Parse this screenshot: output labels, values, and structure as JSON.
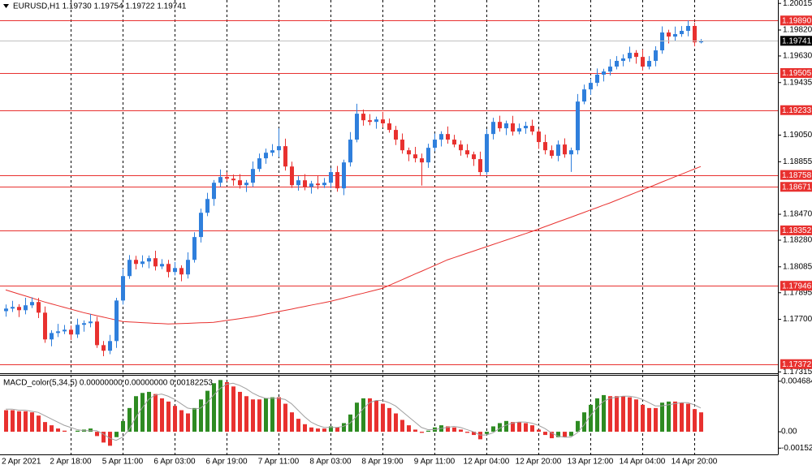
{
  "chart_data": [
    {
      "type": "candlestick",
      "title": "EURUSD,H1  1.19730 1.19754 1.19722 1.19741",
      "categories": [
        "2 Apr 2021",
        null,
        null,
        null,
        null,
        null,
        null,
        null,
        null,
        null,
        "2 Apr 18:00",
        null,
        null,
        null,
        null,
        null,
        null,
        null,
        "5 Apr 11:00",
        null,
        null,
        null,
        null,
        null,
        null,
        null,
        "6 Apr 03:00",
        null,
        null,
        null,
        null,
        null,
        null,
        null,
        "6 Apr 19:00",
        null,
        null,
        null,
        null,
        null,
        null,
        null,
        "7 Apr 11:00",
        null,
        null,
        null,
        null,
        null,
        null,
        null,
        "8 Apr 03:00",
        null,
        null,
        null,
        null,
        null,
        null,
        null,
        "8 Apr 19:00",
        null,
        null,
        null,
        null,
        null,
        null,
        null,
        "9 Apr 11:00",
        null,
        null,
        null,
        null,
        null,
        null,
        null,
        "12 Apr 04:00",
        null,
        null,
        null,
        null,
        null,
        null,
        null,
        "12 Apr 20:00",
        null,
        null,
        null,
        null,
        null,
        null,
        null,
        "13 Apr 12:00",
        null,
        null,
        null,
        null,
        null,
        null,
        null,
        "14 Apr 04:00",
        null,
        null,
        null,
        null,
        null,
        null,
        null,
        "14 Apr 20:00",
        null
      ],
      "open": [
        1.1776,
        1.17779,
        1.17791,
        1.17767,
        1.17803,
        1.17827,
        1.17749,
        1.17553,
        1.176,
        1.17612,
        1.17624,
        1.17589,
        1.1766,
        1.17672,
        1.17684,
        1.17511,
        1.1747,
        1.17541,
        1.17838,
        1.18017,
        1.18136,
        1.18106,
        1.18124,
        1.18148,
        1.18088,
        1.18106,
        1.18047,
        1.18076,
        1.18029,
        1.18136,
        1.18303,
        1.18481,
        1.18582,
        1.18701,
        1.18743,
        1.18731,
        1.18719,
        1.18683,
        1.18701,
        1.18802,
        1.1888,
        1.18921,
        1.18939,
        1.18969,
        1.1882,
        1.18683,
        1.18719,
        1.18671,
        1.18695,
        1.18683,
        1.18701,
        1.18779,
        1.1866,
        1.1885,
        1.19017,
        1.19207,
        1.19159,
        1.19147,
        1.19165,
        1.19136,
        1.19088,
        1.19017,
        1.18939,
        1.18909,
        1.1888,
        1.1885,
        1.18957,
        1.19017,
        1.19058,
        1.19017,
        1.18981,
        1.18939,
        1.18909,
        1.18874,
        1.18779,
        1.19058,
        1.19147,
        1.191,
        1.19136,
        1.19076,
        1.191,
        1.19118,
        1.19076,
        1.18999,
        1.18939,
        1.18898,
        1.18981,
        1.18909,
        1.18939,
        1.19296,
        1.19385,
        1.19433,
        1.19493,
        1.19516,
        1.19552,
        1.19594,
        1.19612,
        1.19653,
        1.19623,
        1.19552,
        1.19594,
        1.19671,
        1.19802,
        1.19772,
        1.1979,
        1.19814,
        1.1985,
        1.1973
      ],
      "high": [
        1.17809,
        1.17836,
        1.17811,
        1.17858,
        1.17862,
        1.17857,
        1.17794,
        1.1762,
        1.17667,
        1.17659,
        1.17654,
        1.17705,
        1.17692,
        1.17739,
        1.17719,
        1.17541,
        1.17586,
        1.17858,
        1.18072,
        1.18171,
        1.18166,
        1.18169,
        1.18168,
        1.18203,
        1.18141,
        1.18136,
        1.18121,
        1.18096,
        1.18191,
        1.18338,
        1.18511,
        1.18627,
        1.18721,
        1.18798,
        1.18778,
        1.18761,
        1.18764,
        1.18721,
        1.18857,
        1.18915,
        1.18951,
        1.18984,
        1.191,
        1.19024,
        1.18855,
        1.18749,
        1.18764,
        1.18715,
        1.1875,
        1.18736,
        1.18809,
        1.18824,
        1.1887,
        1.19072,
        1.1928,
        1.19237,
        1.19204,
        1.19185,
        1.1922,
        1.19171,
        1.19118,
        1.19062,
        1.18959,
        1.18964,
        1.18915,
        1.18987,
        1.19062,
        1.19078,
        1.19113,
        1.19052,
        1.19011,
        1.18984,
        1.18929,
        1.18929,
        1.19093,
        1.19177,
        1.19192,
        1.19156,
        1.19191,
        1.19135,
        1.19148,
        1.19163,
        1.19096,
        1.19054,
        1.18974,
        1.19011,
        1.19026,
        1.18959,
        1.19351,
        1.1942,
        1.19463,
        1.19538,
        1.19536,
        1.19607,
        1.19629,
        1.19642,
        1.19698,
        1.19673,
        1.19678,
        1.19629,
        1.19701,
        1.19847,
        1.19822,
        1.19845,
        1.19849,
        1.1989,
        1.19875,
        1.19754
      ],
      "low": [
        1.1772,
        1.17754,
        1.17717,
        1.17737,
        1.17783,
        1.17709,
        1.17528,
        1.17503,
        1.1757,
        1.17592,
        1.17549,
        1.17564,
        1.1761,
        1.17642,
        1.17491,
        1.1743,
        1.17445,
        1.17491,
        1.17808,
        1.17997,
        1.18066,
        1.18081,
        1.18074,
        1.18058,
        1.18068,
        1.18007,
        1.18022,
        1.17979,
        1.17999,
        1.18116,
        1.18263,
        1.18456,
        1.18532,
        1.18671,
        1.18711,
        1.18679,
        1.18658,
        1.18633,
        1.18671,
        1.18782,
        1.1884,
        1.18896,
        1.18889,
        1.1879,
        1.18663,
        1.18643,
        1.18646,
        1.18621,
        1.18653,
        1.18663,
        1.18661,
        1.18635,
        1.1861,
        1.1882,
        1.18997,
        1.19119,
        1.19122,
        1.19097,
        1.19106,
        1.19068,
        1.18977,
        1.18914,
        1.18859,
        1.1885,
        1.1868,
        1.1881,
        1.18932,
        1.18967,
        1.18987,
        1.18961,
        1.18899,
        1.18884,
        1.18824,
        1.18749,
        1.18759,
        1.19018,
        1.19075,
        1.1905,
        1.19046,
        1.19056,
        1.1906,
        1.19051,
        1.18949,
        1.18909,
        1.18878,
        1.18858,
        1.18884,
        1.1878,
        1.18909,
        1.19276,
        1.19345,
        1.19408,
        1.19443,
        1.19486,
        1.19532,
        1.19554,
        1.19587,
        1.19573,
        1.19522,
        1.19532,
        1.19554,
        1.19646,
        1.19722,
        1.19742,
        1.1977,
        1.19774,
        1.197,
        1.19722
      ],
      "close": [
        1.17779,
        1.17791,
        1.17767,
        1.17803,
        1.17827,
        1.17749,
        1.17553,
        1.176,
        1.17612,
        1.17624,
        1.17589,
        1.1766,
        1.17672,
        1.17684,
        1.17511,
        1.1747,
        1.17541,
        1.17838,
        1.18017,
        1.18136,
        1.18106,
        1.18124,
        1.18148,
        1.18088,
        1.18106,
        1.18047,
        1.18076,
        1.18029,
        1.18136,
        1.18303,
        1.18481,
        1.18582,
        1.18701,
        1.18743,
        1.18731,
        1.18719,
        1.18683,
        1.18701,
        1.18802,
        1.1888,
        1.18921,
        1.18939,
        1.18969,
        1.1882,
        1.18683,
        1.18719,
        1.18671,
        1.18695,
        1.18683,
        1.18701,
        1.18779,
        1.1866,
        1.1885,
        1.19017,
        1.19207,
        1.19159,
        1.19147,
        1.19165,
        1.19136,
        1.19088,
        1.19017,
        1.18939,
        1.18909,
        1.1888,
        1.1885,
        1.18957,
        1.19017,
        1.19058,
        1.19017,
        1.18981,
        1.18939,
        1.18909,
        1.18874,
        1.18779,
        1.19058,
        1.19147,
        1.191,
        1.19136,
        1.19076,
        1.191,
        1.19118,
        1.19076,
        1.18999,
        1.18939,
        1.18898,
        1.18981,
        1.18909,
        1.18939,
        1.19296,
        1.19385,
        1.19433,
        1.19493,
        1.19516,
        1.19552,
        1.19594,
        1.19612,
        1.19653,
        1.19623,
        1.19552,
        1.19594,
        1.19671,
        1.19802,
        1.19772,
        1.1979,
        1.19814,
        1.1985,
        1.1973,
        1.19741
      ],
      "up_color": "#2f7fdc",
      "down_color": "#e8312f",
      "ma": {
        "color": "#e8312f",
        "values": [
          1.17916,
          1.17901,
          1.17886,
          1.17872,
          1.17857,
          1.17842,
          1.17827,
          1.17814,
          1.17801,
          1.17788,
          1.17775,
          1.17762,
          1.17749,
          1.17738,
          1.17727,
          1.17717,
          1.17706,
          1.17695,
          1.17684,
          1.17681,
          1.17679,
          1.17676,
          1.17674,
          1.17671,
          1.17669,
          1.17666,
          1.17668,
          1.17669,
          1.17671,
          1.17673,
          1.17675,
          1.17676,
          1.17678,
          1.17685,
          1.17692,
          1.17698,
          1.17705,
          1.17712,
          1.17719,
          1.17728,
          1.17738,
          1.17747,
          1.17757,
          1.17766,
          1.17775,
          1.17785,
          1.17794,
          1.17804,
          1.17813,
          1.17822,
          1.17832,
          1.17844,
          1.17856,
          1.17868,
          1.1788,
          1.17891,
          1.17903,
          1.17915,
          1.17927,
          1.17948,
          1.17969,
          1.1799,
          1.18011,
          1.18032,
          1.18052,
          1.18073,
          1.18094,
          1.18115,
          1.18136,
          1.18152,
          1.18168,
          1.18184,
          1.182,
          1.18216,
          1.18232,
          1.18248,
          1.18264,
          1.1828,
          1.18296,
          1.18312,
          1.18328,
          1.18344,
          1.18361,
          1.18379,
          1.18396,
          1.18414,
          1.18431,
          1.18448,
          1.18466,
          1.18483,
          1.18501,
          1.18518,
          1.18536,
          1.18553,
          1.18572,
          1.18591,
          1.1861,
          1.18629,
          1.18648,
          1.18667,
          1.18686,
          1.18706,
          1.18725,
          1.18744,
          1.18763,
          1.18782,
          1.18801,
          1.1882
        ]
      },
      "levels": [
        {
          "value": 1.1989,
          "label": "1.19890"
        },
        1.19505,
        1.19233,
        1.18758,
        1.18671,
        1.18352,
        1.17946,
        1.17372
      ],
      "level_color": "#e8312f",
      "last_price": 1.19741,
      "last_price_color": "#c0c0c0",
      "ylim": [
        1.17305,
        1.2004
      ],
      "yticks": [
        1.20015,
        {
          "value": 1.1982,
          "label": "1.19820"
        },
        {
          "value": 1.1963,
          "label": "1.19630"
        },
        1.19435,
        {
          "value": 1.1905,
          "label": "1.19050"
        },
        1.18855,
        {
          "value": 1.1847,
          "label": "1.18470"
        },
        {
          "value": 1.1828,
          "label": "1.18280"
        },
        1.18085,
        1.17895,
        {
          "value": 1.177,
          "label": "1.17700"
        },
        1.17315
      ],
      "grid": true
    },
    {
      "type": "macd",
      "title": "MACD_color(5,34,5) 0.00000000 0.00000000 0.00182253",
      "values": [
        0.002,
        0.002,
        0.0019,
        0.0019,
        0.0018,
        0.0015,
        0.0009,
        0.0006,
        0.0003,
        0.0001,
        0,
        0.0001,
        0.0002,
        0.0003,
        -0.0004,
        -0.001,
        -0.0013,
        -0.0005,
        0.001,
        0.0022,
        0.0033,
        0.0036,
        0.0037,
        0.0035,
        0.0031,
        0.0028,
        0.0024,
        0.002,
        0.0017,
        0.0022,
        0.003,
        0.0038,
        0.0045,
        0.0048,
        0.0046,
        0.0042,
        0.0037,
        0.0033,
        0.003,
        0.003,
        0.0031,
        0.0032,
        0.0032,
        0.0026,
        0.0018,
        0.0012,
        0.0007,
        0.0004,
        0.0003,
        0.0003,
        0.0005,
        0.0004,
        0.0008,
        0.0016,
        0.0027,
        0.0031,
        0.0031,
        0.0029,
        0.0026,
        0.0022,
        0.0017,
        0.0011,
        0.0006,
        0.0002,
        -0.0001,
        0.0001,
        0.0004,
        0.0006,
        0.0005,
        0.0004,
        0.0002,
        -0.0001,
        -0.0003,
        -0.0007,
        -0.0002,
        0.0005,
        0.0008,
        0.001,
        0.0009,
        0.0009,
        0.0008,
        0.0006,
        0.0002,
        -0.0003,
        -0.0006,
        -0.0005,
        -0.0005,
        -0.0004,
        0.001,
        0.0018,
        0.0025,
        0.0031,
        0.0034,
        0.0033,
        0.0033,
        0.0033,
        0.0032,
        0.003,
        0.0025,
        0.0022,
        0.0022,
        0.0027,
        0.0028,
        0.0028,
        0.0027,
        0.0026,
        0.0021,
        0.0018
      ],
      "signal": [
        0.0021,
        0.0021,
        0.002,
        0.002,
        0.0019,
        0.0018,
        0.0015,
        0.0012,
        0.0009,
        0.0006,
        0.0004,
        0.0002,
        0.0001,
        0.0001,
        0.0001,
        -0.0002,
        -0.0006,
        -0.0008,
        -0.0005,
        0.0002,
        0.0013,
        0.0022,
        0.003,
        0.0034,
        0.0035,
        0.0033,
        0.003,
        0.0026,
        0.0022,
        0.0021,
        0.0022,
        0.0027,
        0.0034,
        0.004,
        0.0044,
        0.0045,
        0.0043,
        0.004,
        0.0036,
        0.0033,
        0.0031,
        0.0031,
        0.0031,
        0.003,
        0.0026,
        0.002,
        0.0014,
        0.0009,
        0.0006,
        0.0004,
        0.0004,
        0.0004,
        0.0005,
        0.0008,
        0.0014,
        0.0021,
        0.0027,
        0.0029,
        0.0029,
        0.0027,
        0.0024,
        0.0019,
        0.0014,
        0.0009,
        0.0004,
        0.0002,
        0.0002,
        0.0003,
        0.0004,
        0.0005,
        0.0004,
        0.0002,
        0,
        -0.0003,
        -0.0003,
        -0.0001,
        0.0003,
        0.0006,
        0.0008,
        0.0009,
        0.0009,
        0.0008,
        0.0006,
        0.0003,
        -0.0001,
        -0.0004,
        -0.0005,
        -0.0005,
        -0.0001,
        0.0006,
        0.0015,
        0.0022,
        0.0028,
        0.0031,
        0.0032,
        0.0033,
        0.0033,
        0.0032,
        0.003,
        0.0027,
        0.0024,
        0.0024,
        0.0025,
        0.0026,
        0.0027,
        0.0027,
        0.0025,
        0.0022
      ],
      "up_color": "#2e8b22",
      "down_color": "#e8312f",
      "signal_color": "#a0a0a0",
      "ylim": [
        -0.0021,
        0.0052
      ],
      "yticks": [
        0.004684,
        {
          "value": 0,
          "label": "0.00"
        },
        -0.00152
      ]
    }
  ]
}
